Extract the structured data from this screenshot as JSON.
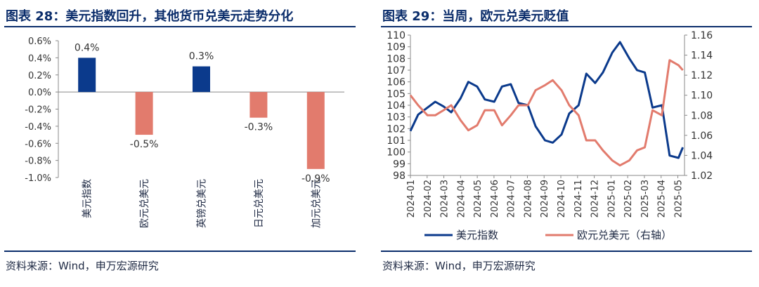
{
  "colors": {
    "navy": "#0b3a8c",
    "salmon": "#e27b6d",
    "title": "#0b2d6b",
    "axis": "#7a7a7a"
  },
  "left": {
    "title": "图表 28：美元指数回升，其他货币兑美元走势分化",
    "source": "资料来源：Wind，申万宏源研究"
  },
  "right": {
    "title": "图表 29：当周，欧元兑美元贬值",
    "source": "资料来源：Wind，申万宏源研究"
  },
  "chart_data": [
    {
      "type": "bar",
      "categories": [
        "美元指数",
        "欧元兑美元",
        "英镑兑美元",
        "日元兑美元",
        "加元兑美元"
      ],
      "values": [
        0.4,
        -0.5,
        0.3,
        -0.3,
        -0.9
      ],
      "value_labels": [
        "0.4%",
        "-0.5%",
        "0.3%",
        "-0.3%",
        "-0.9%"
      ],
      "colors": [
        "#0b3a8c",
        "#e27b6d",
        "#0b3a8c",
        "#e27b6d",
        "#e27b6d"
      ],
      "ylim": [
        -1.0,
        0.6
      ],
      "yticks": [
        "0.6%",
        "0.4%",
        "0.2%",
        "0.0%",
        "-0.2%",
        "-0.4%",
        "-0.6%",
        "-0.8%",
        "-1.0%"
      ],
      "grid": false
    },
    {
      "type": "line",
      "x_ticks": [
        "2024-01",
        "2024-02",
        "2024-03",
        "2024-04",
        "2024-05",
        "2024-06",
        "2024-07",
        "2024-08",
        "2024-09",
        "2024-10",
        "2024-11",
        "2024-12",
        "2025-01",
        "2025-02",
        "2025-03",
        "2025-04",
        "2025-05"
      ],
      "ylim_left": [
        98,
        110
      ],
      "yticks_left": [
        "98",
        "99",
        "100",
        "101",
        "102",
        "103",
        "104",
        "105",
        "106",
        "107",
        "108",
        "109",
        "110"
      ],
      "ylim_right": [
        1.02,
        1.16
      ],
      "yticks_right": [
        "1.02",
        "1.04",
        "1.06",
        "1.08",
        "1.10",
        "1.12",
        "1.14",
        "1.16"
      ],
      "legend_position": "bottom",
      "series": [
        {
          "name": "美元指数",
          "axis": "left",
          "color": "#0b3a8c",
          "x": [
            "2024-01-01",
            "2024-01-15",
            "2024-02-01",
            "2024-02-15",
            "2024-03-01",
            "2024-03-15",
            "2024-04-01",
            "2024-04-15",
            "2024-05-01",
            "2024-05-15",
            "2024-06-01",
            "2024-06-15",
            "2024-07-01",
            "2024-07-15",
            "2024-08-01",
            "2024-08-15",
            "2024-09-01",
            "2024-09-15",
            "2024-10-01",
            "2024-10-15",
            "2024-11-01",
            "2024-11-15",
            "2024-12-01",
            "2024-12-15",
            "2025-01-01",
            "2025-01-15",
            "2025-02-01",
            "2025-02-15",
            "2025-03-01",
            "2025-03-15",
            "2025-04-01",
            "2025-04-15",
            "2025-05-01",
            "2025-05-09"
          ],
          "y": [
            101.8,
            103.2,
            103.8,
            104.3,
            103.9,
            103.4,
            104.6,
            106.0,
            105.6,
            104.5,
            104.3,
            105.6,
            105.8,
            104.2,
            104.0,
            102.2,
            101.0,
            100.8,
            101.5,
            103.3,
            104.0,
            106.7,
            105.9,
            106.8,
            108.5,
            109.4,
            108.0,
            107.0,
            106.8,
            103.8,
            104.0,
            99.7,
            99.5,
            100.4
          ]
        },
        {
          "name": "欧元兑美元（右轴）",
          "axis": "right",
          "color": "#e27b6d",
          "x": [
            "2024-01-01",
            "2024-01-15",
            "2024-02-01",
            "2024-02-15",
            "2024-03-01",
            "2024-03-15",
            "2024-04-01",
            "2024-04-15",
            "2024-05-01",
            "2024-05-15",
            "2024-06-01",
            "2024-06-15",
            "2024-07-01",
            "2024-07-15",
            "2024-08-01",
            "2024-08-15",
            "2024-09-01",
            "2024-09-15",
            "2024-10-01",
            "2024-10-15",
            "2024-11-01",
            "2024-11-15",
            "2024-12-01",
            "2024-12-15",
            "2025-01-01",
            "2025-01-15",
            "2025-02-01",
            "2025-02-15",
            "2025-03-01",
            "2025-03-15",
            "2025-04-01",
            "2025-04-15",
            "2025-05-01",
            "2025-05-09"
          ],
          "y": [
            1.1,
            1.09,
            1.08,
            1.08,
            1.085,
            1.09,
            1.075,
            1.065,
            1.07,
            1.085,
            1.085,
            1.07,
            1.08,
            1.09,
            1.09,
            1.105,
            1.11,
            1.115,
            1.105,
            1.09,
            1.08,
            1.055,
            1.055,
            1.045,
            1.035,
            1.03,
            1.035,
            1.045,
            1.048,
            1.085,
            1.08,
            1.135,
            1.13,
            1.125
          ]
        }
      ]
    }
  ]
}
